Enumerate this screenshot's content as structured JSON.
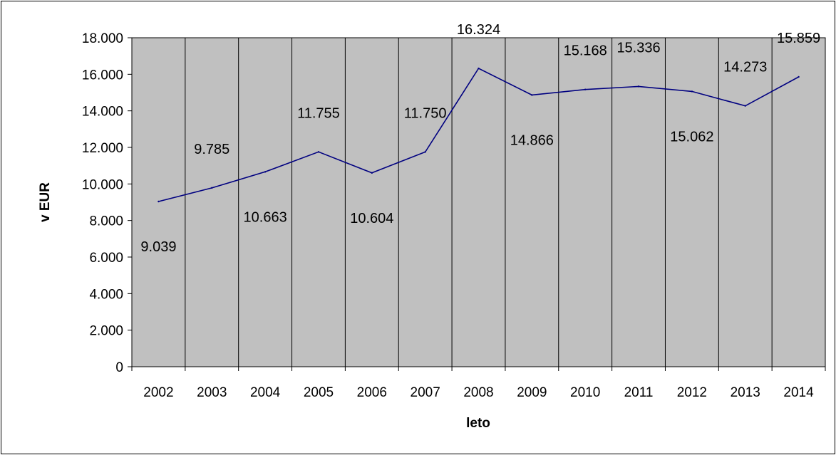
{
  "chart_data": {
    "type": "line",
    "title": "",
    "xlabel": "leto",
    "ylabel": "v EUR",
    "categories": [
      "2002",
      "2003",
      "2004",
      "2005",
      "2006",
      "2007",
      "2008",
      "2009",
      "2010",
      "2011",
      "2012",
      "2013",
      "2014"
    ],
    "series": [
      {
        "values": [
          9039,
          9785,
          10663,
          11755,
          10604,
          11750,
          16324,
          14866,
          15168,
          15336,
          15062,
          14273,
          15859
        ],
        "labels": [
          "9.039",
          "9.785",
          "10.663",
          "11.755",
          "10.604",
          "11.750",
          "16.324",
          "14.866",
          "15.168",
          "15.336",
          "15.062",
          "14.273",
          "15.859"
        ]
      }
    ],
    "ylim": [
      0,
      18000
    ],
    "yticks": [
      0,
      2000,
      4000,
      6000,
      8000,
      10000,
      12000,
      14000,
      16000,
      18000
    ],
    "ytick_labels": [
      "0",
      "2.000",
      "4.000",
      "6.000",
      "8.000",
      "10.000",
      "12.000",
      "14.000",
      "16.000",
      "18.000"
    ],
    "grid": "vertical",
    "legend": "none",
    "colors": {
      "plot_background": "#c0c0c0",
      "line": "#000080",
      "grid": "#000000",
      "frame": "#000000"
    }
  }
}
